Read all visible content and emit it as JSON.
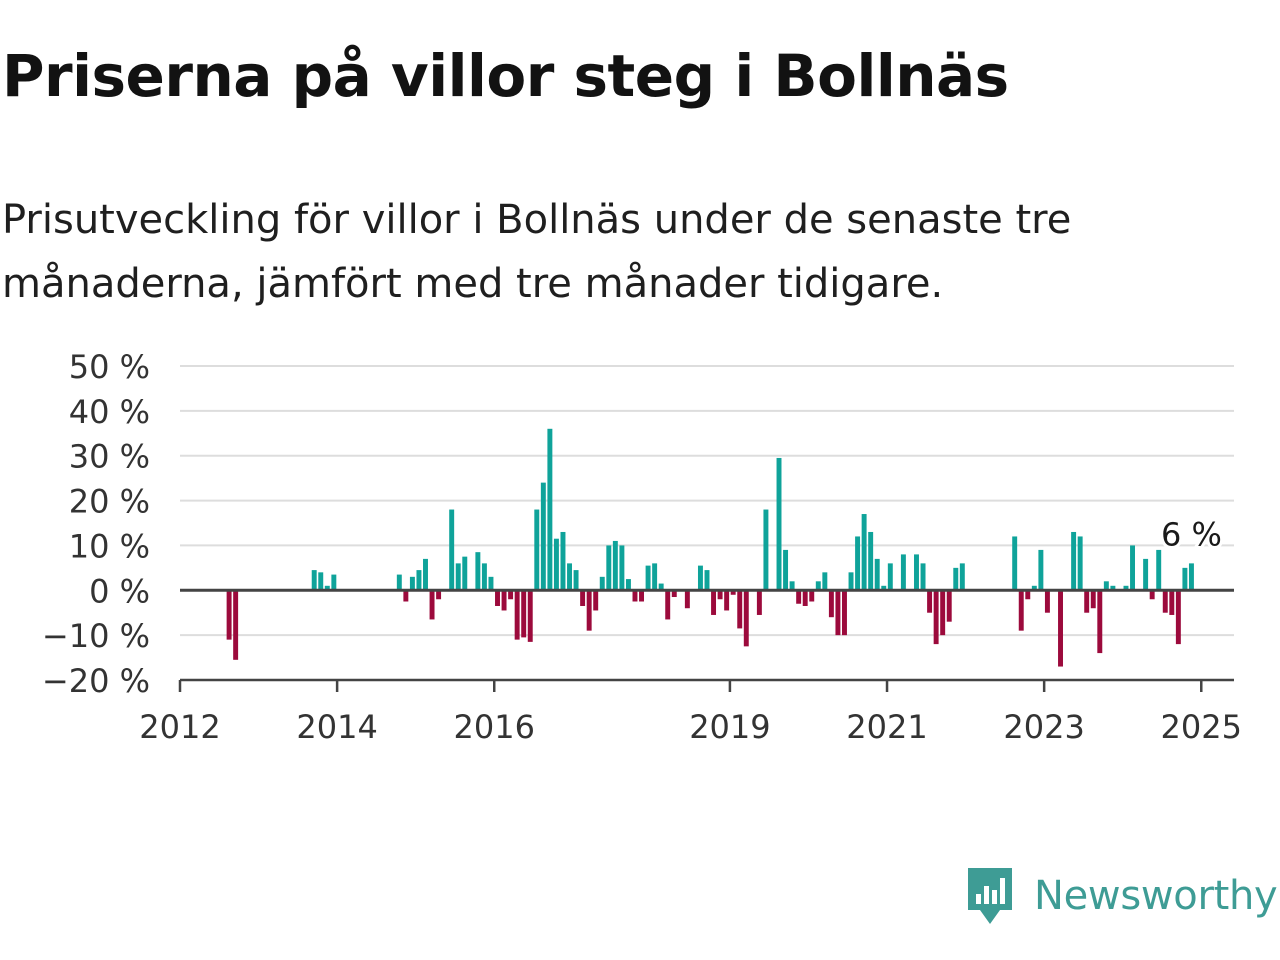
{
  "header": {
    "title": "Priserna på villor steg i Bollnäs",
    "subtitle": "Prisutveckling för villor i Bollnäs under de senaste tre månaderna, jämfört med tre månader tidigare."
  },
  "brand": {
    "name": "Newsworthy",
    "icon": "newsworthy-logo-icon",
    "color": "#3e9c95"
  },
  "colors": {
    "positive": "#0fa39a",
    "negative": "#9c0a3c",
    "grid": "#dddddd",
    "axis": "#444444"
  },
  "chart_data": {
    "type": "bar",
    "title": "Priserna på villor steg i Bollnäs",
    "subtitle": "Prisutveckling för villor i Bollnäs under de senaste tre månaderna, jämfört med tre månader tidigare.",
    "ylim": [
      -20,
      50
    ],
    "y_ticks": [
      -20,
      -10,
      0,
      10,
      20,
      30,
      40,
      50
    ],
    "y_tick_labels": [
      "−20 %",
      "−10 %",
      "0 %",
      "10 %",
      "20 %",
      "30 %",
      "40 %",
      "50 %"
    ],
    "x_range": [
      "2012-01",
      "2025-06"
    ],
    "x_ticks": [
      "2012-01",
      "2014-01",
      "2016-01",
      "2019-01",
      "2021-01",
      "2023-01",
      "2025-01"
    ],
    "x_tick_labels": [
      "2012",
      "2014",
      "2016",
      "2019",
      "2021",
      "2023",
      "2025"
    ],
    "grid": true,
    "last_value_label": "6 %",
    "series": [
      {
        "unit": "%",
        "points": [
          {
            "x": "2012-08",
            "y": -11
          },
          {
            "x": "2012-09",
            "y": -15.5
          },
          {
            "x": "2013-09",
            "y": 4.5
          },
          {
            "x": "2013-10",
            "y": 4
          },
          {
            "x": "2013-11",
            "y": 1
          },
          {
            "x": "2013-12",
            "y": 3.5
          },
          {
            "x": "2014-10",
            "y": 3.5
          },
          {
            "x": "2014-11",
            "y": -2.5
          },
          {
            "x": "2014-12",
            "y": 3
          },
          {
            "x": "2015-01",
            "y": 4.5
          },
          {
            "x": "2015-02",
            "y": 7
          },
          {
            "x": "2015-03",
            "y": -6.5
          },
          {
            "x": "2015-04",
            "y": -2
          },
          {
            "x": "2015-06",
            "y": 18
          },
          {
            "x": "2015-07",
            "y": 6
          },
          {
            "x": "2015-08",
            "y": 7.5
          },
          {
            "x": "2015-10",
            "y": 8.5
          },
          {
            "x": "2015-11",
            "y": 6
          },
          {
            "x": "2015-12",
            "y": 3
          },
          {
            "x": "2016-01",
            "y": -3.5
          },
          {
            "x": "2016-02",
            "y": -4.5
          },
          {
            "x": "2016-03",
            "y": -2
          },
          {
            "x": "2016-04",
            "y": -11
          },
          {
            "x": "2016-05",
            "y": -10.5
          },
          {
            "x": "2016-06",
            "y": -11.5
          },
          {
            "x": "2016-07",
            "y": 18
          },
          {
            "x": "2016-08",
            "y": 24
          },
          {
            "x": "2016-09",
            "y": 36
          },
          {
            "x": "2016-10",
            "y": 11.5
          },
          {
            "x": "2016-11",
            "y": 13
          },
          {
            "x": "2016-12",
            "y": 6
          },
          {
            "x": "2017-01",
            "y": 4.5
          },
          {
            "x": "2017-02",
            "y": -3.5
          },
          {
            "x": "2017-03",
            "y": -9
          },
          {
            "x": "2017-04",
            "y": -4.5
          },
          {
            "x": "2017-05",
            "y": 3
          },
          {
            "x": "2017-06",
            "y": 10
          },
          {
            "x": "2017-07",
            "y": 11
          },
          {
            "x": "2017-08",
            "y": 10
          },
          {
            "x": "2017-09",
            "y": 2.5
          },
          {
            "x": "2017-10",
            "y": -2.5
          },
          {
            "x": "2017-11",
            "y": -2.5
          },
          {
            "x": "2017-12",
            "y": 5.5
          },
          {
            "x": "2018-01",
            "y": 6
          },
          {
            "x": "2018-02",
            "y": 1.5
          },
          {
            "x": "2018-03",
            "y": -6.5
          },
          {
            "x": "2018-04",
            "y": -1.5
          },
          {
            "x": "2018-06",
            "y": -4
          },
          {
            "x": "2018-08",
            "y": 5.5
          },
          {
            "x": "2018-09",
            "y": 4.5
          },
          {
            "x": "2018-10",
            "y": -5.5
          },
          {
            "x": "2018-11",
            "y": -2
          },
          {
            "x": "2018-12",
            "y": -4.5
          },
          {
            "x": "2019-01",
            "y": -1
          },
          {
            "x": "2019-02",
            "y": -8.5
          },
          {
            "x": "2019-03",
            "y": -12.5
          },
          {
            "x": "2019-05",
            "y": -5.5
          },
          {
            "x": "2019-06",
            "y": 18
          },
          {
            "x": "2019-08",
            "y": 29.5
          },
          {
            "x": "2019-09",
            "y": 9
          },
          {
            "x": "2019-10",
            "y": 2
          },
          {
            "x": "2019-11",
            "y": -3
          },
          {
            "x": "2019-12",
            "y": -3.5
          },
          {
            "x": "2020-01",
            "y": -2.5
          },
          {
            "x": "2020-02",
            "y": 2
          },
          {
            "x": "2020-03",
            "y": 4
          },
          {
            "x": "2020-04",
            "y": -6
          },
          {
            "x": "2020-05",
            "y": -10
          },
          {
            "x": "2020-06",
            "y": -10
          },
          {
            "x": "2020-07",
            "y": 4
          },
          {
            "x": "2020-08",
            "y": 12
          },
          {
            "x": "2020-09",
            "y": 17
          },
          {
            "x": "2020-10",
            "y": 13
          },
          {
            "x": "2020-11",
            "y": 7
          },
          {
            "x": "2020-12",
            "y": 1
          },
          {
            "x": "2021-01",
            "y": 6
          },
          {
            "x": "2021-03",
            "y": 8
          },
          {
            "x": "2021-05",
            "y": 8
          },
          {
            "x": "2021-06",
            "y": 6
          },
          {
            "x": "2021-07",
            "y": -5
          },
          {
            "x": "2021-08",
            "y": -12
          },
          {
            "x": "2021-09",
            "y": -10
          },
          {
            "x": "2021-10",
            "y": -7
          },
          {
            "x": "2021-11",
            "y": 5
          },
          {
            "x": "2021-12",
            "y": 6
          },
          {
            "x": "2022-08",
            "y": 12
          },
          {
            "x": "2022-09",
            "y": -9
          },
          {
            "x": "2022-10",
            "y": -2
          },
          {
            "x": "2022-11",
            "y": 1
          },
          {
            "x": "2022-12",
            "y": 9
          },
          {
            "x": "2023-01",
            "y": -5
          },
          {
            "x": "2023-03",
            "y": -17
          },
          {
            "x": "2023-05",
            "y": 13
          },
          {
            "x": "2023-06",
            "y": 12
          },
          {
            "x": "2023-07",
            "y": -5
          },
          {
            "x": "2023-08",
            "y": -4
          },
          {
            "x": "2023-09",
            "y": -14
          },
          {
            "x": "2023-10",
            "y": 2
          },
          {
            "x": "2023-11",
            "y": 1
          },
          {
            "x": "2024-01",
            "y": 1
          },
          {
            "x": "2024-02",
            "y": 10
          },
          {
            "x": "2024-04",
            "y": 7
          },
          {
            "x": "2024-05",
            "y": -2
          },
          {
            "x": "2024-06",
            "y": 9
          },
          {
            "x": "2024-07",
            "y": -5
          },
          {
            "x": "2024-08",
            "y": -5.5
          },
          {
            "x": "2024-09",
            "y": -12
          },
          {
            "x": "2024-10",
            "y": 5
          },
          {
            "x": "2024-11",
            "y": 6
          }
        ]
      }
    ]
  }
}
